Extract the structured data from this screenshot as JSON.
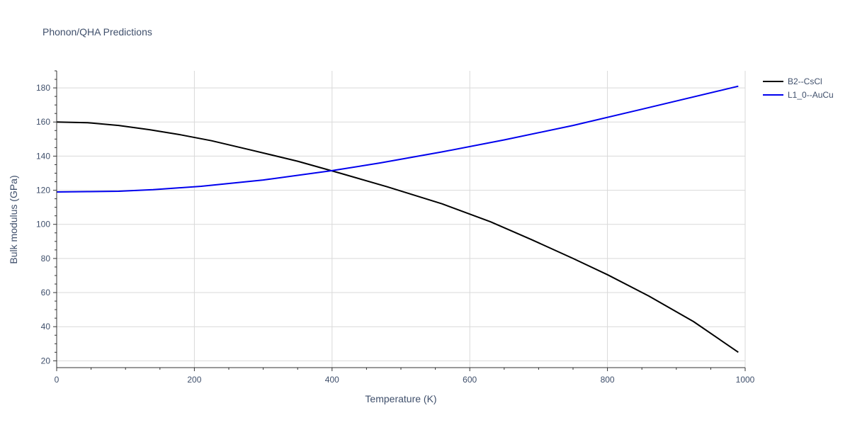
{
  "chart_data": {
    "type": "line",
    "title": "Phonon/QHA Predictions",
    "xlabel": "Temperature (K)",
    "ylabel": "Bulk modulus (GPa)",
    "xlim": [
      0,
      1000
    ],
    "ylim": [
      16,
      190
    ],
    "x_ticks": [
      0,
      200,
      400,
      600,
      800,
      1000
    ],
    "y_ticks": [
      20,
      40,
      60,
      80,
      100,
      120,
      140,
      160,
      180
    ],
    "grid": true,
    "legend_position": "top-right",
    "series": [
      {
        "name": "B2--CsCl",
        "color": "#000000",
        "x": [
          0,
          45,
          90,
          135,
          180,
          225,
          280,
          350,
          410,
          480,
          560,
          630,
          690,
          750,
          800,
          860,
          925,
          990
        ],
        "y": [
          160,
          159.6,
          158,
          155.5,
          152.5,
          149,
          143.8,
          137,
          130.2,
          122,
          112,
          101.5,
          91,
          80,
          70.5,
          58,
          43,
          25
        ]
      },
      {
        "name": "L1_0--AuCu",
        "color": "#0000ee",
        "x": [
          0,
          45,
          90,
          140,
          210,
          300,
          400,
          470,
          560,
          650,
          750,
          850,
          990
        ],
        "y": [
          119,
          119.2,
          119.4,
          120.3,
          122.3,
          126,
          131.5,
          136,
          142.5,
          149.5,
          158,
          167.5,
          181
        ]
      }
    ]
  }
}
